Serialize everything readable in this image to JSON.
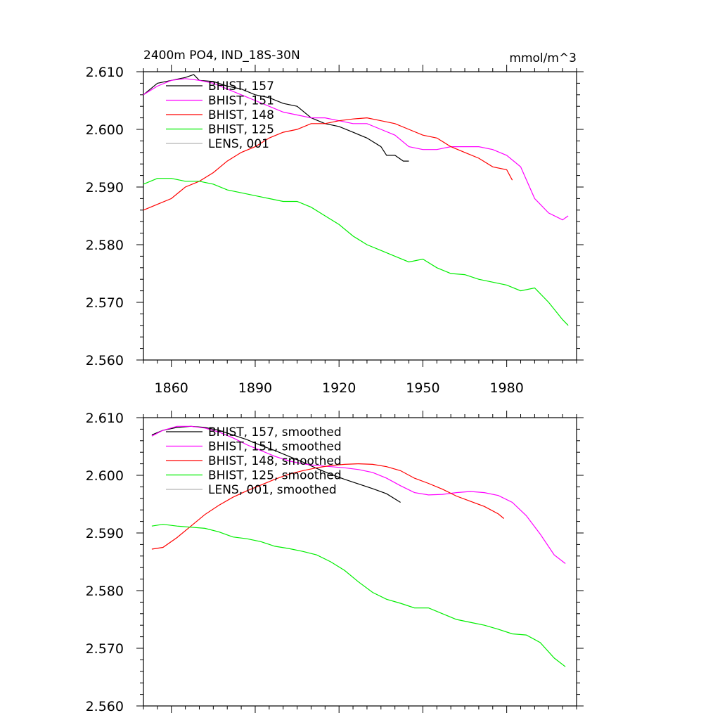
{
  "header": {
    "title": "2400m PO4, IND_18S-30N",
    "units": "mmol/m^3"
  },
  "colors": {
    "BHIST, 157": "#000000",
    "BHIST, 151": "#ff00ff",
    "BHIST, 148": "#ff0000",
    "BHIST, 125": "#00ee00",
    "LENS, 001": "#b4b4b4"
  },
  "chart_data": [
    {
      "type": "line",
      "title": "2400m PO4, IND_18S-30N",
      "units_label": "mmol/m^3",
      "xlim": [
        1850,
        2005
      ],
      "ylim": [
        2.56,
        2.61
      ],
      "xticks": [
        1860,
        1890,
        1920,
        1950,
        1980
      ],
      "xtick_labels": [
        "1860",
        "1890",
        "1920",
        "1950",
        "1980"
      ],
      "yticks": [
        2.56,
        2.57,
        2.58,
        2.59,
        2.6,
        2.61
      ],
      "ytick_labels": [
        "2.560",
        "2.570",
        "2.580",
        "2.590",
        "2.600",
        "2.610"
      ],
      "legend_position": "top-left",
      "series": [
        {
          "name": "BHIST, 157",
          "color": "#000000",
          "x": [
            1850,
            1855,
            1860,
            1865,
            1868,
            1870,
            1875,
            1880,
            1885,
            1890,
            1895,
            1900,
            1905,
            1910,
            1915,
            1920,
            1925,
            1930,
            1935,
            1937,
            1940,
            1943,
            1945
          ],
          "y": [
            2.606,
            2.608,
            2.6085,
            2.609,
            2.6095,
            2.6085,
            2.6083,
            2.6075,
            2.607,
            2.606,
            2.6055,
            2.6045,
            2.604,
            2.602,
            2.601,
            2.6005,
            2.5995,
            2.5985,
            2.597,
            2.5955,
            2.5955,
            2.5945,
            2.5945
          ]
        },
        {
          "name": "BHIST, 151",
          "color": "#ff00ff",
          "x": [
            1850,
            1855,
            1860,
            1865,
            1870,
            1875,
            1880,
            1885,
            1890,
            1895,
            1900,
            1905,
            1910,
            1915,
            1920,
            1925,
            1930,
            1935,
            1940,
            1945,
            1950,
            1955,
            1960,
            1965,
            1970,
            1975,
            1980,
            1985,
            1990,
            1995,
            2000,
            2002
          ],
          "y": [
            2.606,
            2.6075,
            2.6085,
            2.6088,
            2.6085,
            2.608,
            2.607,
            2.606,
            2.605,
            2.604,
            2.603,
            2.6025,
            2.602,
            2.602,
            2.6015,
            2.601,
            2.601,
            2.6,
            2.599,
            2.597,
            2.5965,
            2.5965,
            2.597,
            2.597,
            2.597,
            2.5965,
            2.5955,
            2.5935,
            2.588,
            2.5855,
            2.5843,
            2.585
          ]
        },
        {
          "name": "BHIST, 148",
          "color": "#ff0000",
          "x": [
            1850,
            1855,
            1860,
            1865,
            1870,
            1875,
            1880,
            1885,
            1890,
            1895,
            1900,
            1905,
            1910,
            1915,
            1920,
            1925,
            1930,
            1935,
            1940,
            1945,
            1950,
            1955,
            1960,
            1965,
            1970,
            1975,
            1980,
            1982
          ],
          "y": [
            2.586,
            2.587,
            2.588,
            2.59,
            2.591,
            2.5925,
            2.5945,
            2.596,
            2.597,
            2.5985,
            2.5995,
            2.6,
            2.601,
            2.601,
            2.6015,
            2.6018,
            2.602,
            2.6015,
            2.601,
            2.6,
            2.599,
            2.5985,
            2.597,
            2.596,
            2.595,
            2.5935,
            2.593,
            2.5912
          ]
        },
        {
          "name": "BHIST, 125",
          "color": "#00ee00",
          "x": [
            1850,
            1855,
            1860,
            1865,
            1870,
            1875,
            1880,
            1885,
            1890,
            1895,
            1900,
            1905,
            1910,
            1915,
            1920,
            1925,
            1930,
            1935,
            1940,
            1945,
            1950,
            1955,
            1960,
            1965,
            1970,
            1975,
            1980,
            1985,
            1990,
            1995,
            2000,
            2002
          ],
          "y": [
            2.5905,
            2.5915,
            2.5915,
            2.591,
            2.591,
            2.5905,
            2.5895,
            2.589,
            2.5885,
            2.588,
            2.5875,
            2.5875,
            2.5865,
            2.585,
            2.5835,
            2.5815,
            2.58,
            2.579,
            2.578,
            2.577,
            2.5775,
            2.576,
            2.575,
            2.5748,
            2.574,
            2.5735,
            2.573,
            2.572,
            2.5725,
            2.57,
            2.567,
            2.566
          ]
        },
        {
          "name": "LENS, 001",
          "color": "#b4b4b4",
          "x": [],
          "y": []
        }
      ]
    },
    {
      "type": "line",
      "xlim": [
        1850,
        2005
      ],
      "ylim": [
        2.56,
        2.61
      ],
      "xticks": [
        1860,
        1890,
        1920,
        1950,
        1980
      ],
      "yticks": [
        2.56,
        2.57,
        2.58,
        2.59,
        2.6,
        2.61
      ],
      "ytick_labels": [
        "2.560",
        "2.570",
        "2.580",
        "2.590",
        "2.600",
        "2.610"
      ],
      "legend_position": "top-left",
      "series": [
        {
          "name": "BHIST, 157, smoothed",
          "color": "#000000",
          "x": [
            1853,
            1857,
            1862,
            1867,
            1872,
            1877,
            1882,
            1887,
            1892,
            1897,
            1902,
            1907,
            1912,
            1917,
            1922,
            1927,
            1932,
            1937,
            1942
          ],
          "y": [
            2.607,
            2.6078,
            2.6083,
            2.6085,
            2.6083,
            2.6078,
            2.607,
            2.6062,
            2.6052,
            2.6043,
            2.6033,
            2.6023,
            2.6012,
            2.6002,
            2.5993,
            2.5985,
            2.5977,
            2.5968,
            2.5953
          ]
        },
        {
          "name": "BHIST, 151, smoothed",
          "color": "#ff00ff",
          "x": [
            1853,
            1857,
            1862,
            1867,
            1872,
            1877,
            1882,
            1887,
            1892,
            1897,
            1902,
            1907,
            1912,
            1917,
            1922,
            1927,
            1932,
            1937,
            1942,
            1947,
            1952,
            1957,
            1962,
            1967,
            1972,
            1977,
            1982,
            1987,
            1992,
            1997,
            2001
          ],
          "y": [
            2.6068,
            2.6078,
            2.6085,
            2.6085,
            2.6082,
            2.6075,
            2.6065,
            2.6053,
            2.6043,
            2.6033,
            2.6025,
            2.602,
            2.6017,
            2.6015,
            2.6013,
            2.601,
            2.6005,
            2.5995,
            2.5982,
            2.597,
            2.5966,
            2.5967,
            2.597,
            2.5972,
            2.597,
            2.5965,
            2.5953,
            2.593,
            2.5898,
            2.5862,
            2.5847
          ]
        },
        {
          "name": "BHIST, 148, smoothed",
          "color": "#ff0000",
          "x": [
            1853,
            1857,
            1862,
            1867,
            1872,
            1877,
            1882,
            1887,
            1892,
            1897,
            1902,
            1907,
            1912,
            1917,
            1922,
            1927,
            1932,
            1937,
            1942,
            1947,
            1952,
            1957,
            1962,
            1967,
            1972,
            1977,
            1979
          ],
          "y": [
            2.5872,
            2.5875,
            2.5892,
            2.5912,
            2.5932,
            2.5948,
            2.5962,
            2.5973,
            2.5983,
            2.5993,
            2.6002,
            2.6008,
            2.6013,
            2.6017,
            2.6019,
            2.602,
            2.6019,
            2.6015,
            2.6008,
            2.5995,
            2.5986,
            2.5976,
            2.5964,
            2.5955,
            2.5946,
            2.5933,
            2.5925
          ]
        },
        {
          "name": "BHIST, 125, smoothed",
          "color": "#00ee00",
          "x": [
            1853,
            1857,
            1862,
            1867,
            1872,
            1877,
            1882,
            1887,
            1892,
            1897,
            1902,
            1907,
            1912,
            1917,
            1922,
            1927,
            1932,
            1937,
            1942,
            1947,
            1952,
            1957,
            1962,
            1967,
            1972,
            1977,
            1982,
            1987,
            1992,
            1997,
            2001
          ],
          "y": [
            2.5912,
            2.5915,
            2.5912,
            2.591,
            2.5908,
            2.5902,
            2.5893,
            2.589,
            2.5885,
            2.5877,
            2.5873,
            2.5868,
            2.5862,
            2.585,
            2.5835,
            2.5815,
            2.5797,
            2.5785,
            2.5778,
            2.577,
            2.577,
            2.576,
            2.575,
            2.5745,
            2.574,
            2.5733,
            2.5725,
            2.5723,
            2.571,
            2.5683,
            2.5668
          ]
        },
        {
          "name": "LENS, 001, smoothed",
          "color": "#b4b4b4",
          "x": [],
          "y": []
        }
      ]
    }
  ]
}
